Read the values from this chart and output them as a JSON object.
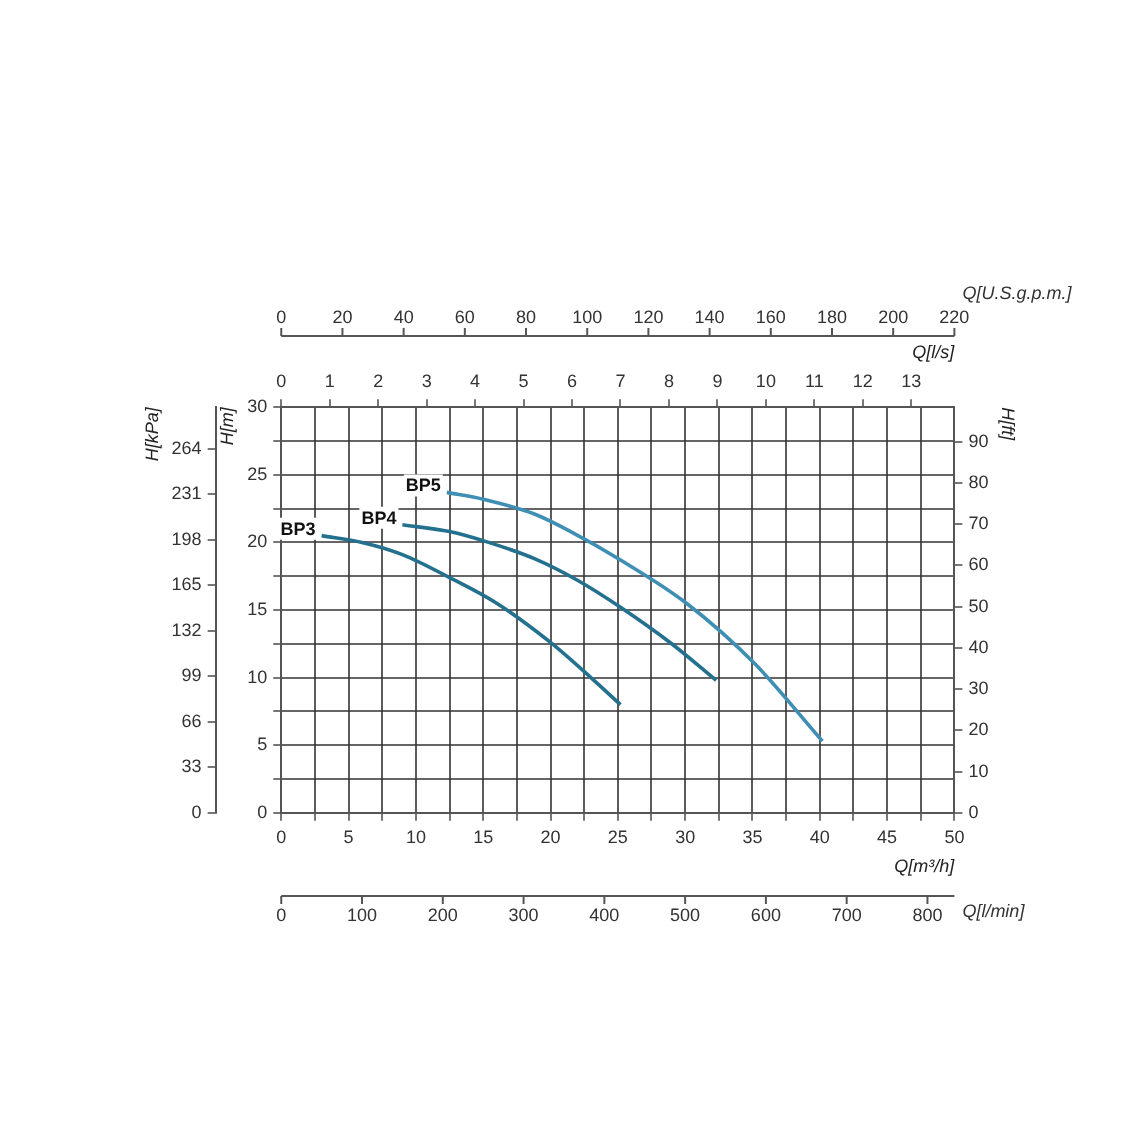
{
  "chart_data": {
    "type": "line",
    "xlabel": "Q[m³/h]",
    "x2label": "Q[l/s]",
    "ylabel": "H[m]",
    "y2label": "H[ft]",
    "y3label": "H[kPa]",
    "series": [
      {
        "name": "BP3",
        "color": "#24708f",
        "x": [
          3,
          6,
          9,
          12.5,
          16,
          20,
          23,
          25.2
        ],
        "values": [
          20.5,
          20,
          19.1,
          17.4,
          15.5,
          12.6,
          10,
          8
        ]
      },
      {
        "name": "BP4",
        "color": "#24708f",
        "x": [
          9,
          12.5,
          15.4,
          18.8,
          22,
          25.2,
          29,
          32.3
        ],
        "values": [
          21.3,
          20.8,
          20,
          18.8,
          17.2,
          15.2,
          12.5,
          9.8
        ]
      },
      {
        "name": "BP5",
        "color": "#3f8fb5",
        "x": [
          12.3,
          15,
          18.8,
          21.5,
          25.2,
          30.1,
          35.2,
          40.2
        ],
        "values": [
          23.7,
          23.2,
          22.1,
          20.8,
          18.7,
          15.5,
          11,
          5.3
        ]
      }
    ],
    "xlim": [
      0,
      50
    ],
    "xticks": [
      0,
      {
        "value": 2.5,
        "label": null
      },
      5,
      {
        "value": 7.5,
        "label": null
      },
      10,
      {
        "value": 12.5,
        "label": null
      },
      15,
      {
        "value": 17.5,
        "label": null
      },
      20,
      {
        "value": 22.5,
        "label": null
      },
      25,
      {
        "value": 27.5,
        "label": null
      },
      30,
      {
        "value": 32.5,
        "label": null
      },
      35,
      {
        "value": 37.5,
        "label": null
      },
      40,
      {
        "value": 42.5,
        "label": null
      },
      45,
      {
        "value": 47.5,
        "label": null
      },
      50
    ],
    "x2lim": [
      0,
      13.89
    ],
    "x2ticks": [
      0,
      1,
      2,
      3,
      4,
      5,
      6,
      7,
      8,
      9,
      10,
      11,
      12,
      13
    ],
    "ylim": [
      0,
      30
    ],
    "yticks": [
      0,
      {
        "value": 2.5,
        "label": null
      },
      5,
      {
        "value": 7.5,
        "label": null
      },
      10,
      {
        "value": 12.5,
        "label": null
      },
      15,
      {
        "value": 17.5,
        "label": null
      },
      20,
      {
        "value": 22.5,
        "label": null
      },
      25,
      {
        "value": 27.5,
        "label": null
      },
      30
    ],
    "y2lim": [
      0,
      98.4
    ],
    "y2ticks": [
      0,
      10,
      20,
      30,
      40,
      50,
      60,
      70,
      80,
      90
    ],
    "y3lim": [
      0,
      294
    ],
    "y3ticks": [
      0,
      33,
      66,
      99,
      132,
      165,
      198,
      231,
      264
    ],
    "annotations": [
      "0",
      "20",
      "40",
      "60",
      "80",
      "100",
      "120",
      "140",
      "160",
      "180",
      "200",
      "220",
      "Q[U.S.g.p.m.]",
      "0",
      "100",
      "200",
      "300",
      "400",
      "500",
      "600",
      "700",
      "800",
      "Q[l/min]"
    ],
    "grid": true,
    "legend": false,
    "marker": "none",
    "line_style": "solid"
  }
}
